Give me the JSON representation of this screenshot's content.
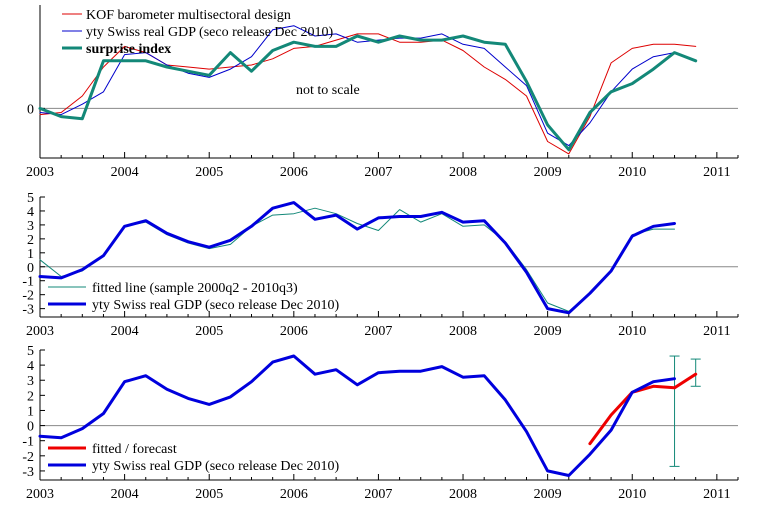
{
  "chart_data": [
    {
      "type": "line",
      "x_range": [
        2003.0,
        2011.25
      ],
      "x_ticks": [
        "2003",
        "2004",
        "2005",
        "2006",
        "2007",
        "2008",
        "2009",
        "2010",
        "2011"
      ],
      "y_ticks": [
        "0"
      ],
      "ylim": [
        -1.2,
        2.5
      ],
      "annotation": "not to scale",
      "legend_position": "top-left",
      "series": [
        {
          "name": "KOF barometer multisectoral design",
          "color": "#dd0000",
          "width": 1,
          "bold_label": false,
          "x": [
            2003.0,
            2003.25,
            2003.5,
            2003.75,
            2004.0,
            2004.25,
            2004.5,
            2004.75,
            2005.0,
            2005.25,
            2005.5,
            2005.75,
            2006.0,
            2006.25,
            2006.5,
            2006.75,
            2007.0,
            2007.25,
            2007.5,
            2007.75,
            2008.0,
            2008.25,
            2008.5,
            2008.75,
            2009.0,
            2009.25,
            2009.5,
            2009.75,
            2010.0,
            2010.25,
            2010.5,
            2010.75
          ],
          "values": [
            -0.15,
            -0.1,
            0.3,
            1.0,
            1.5,
            1.35,
            1.05,
            1.0,
            0.95,
            1.0,
            1.05,
            1.2,
            1.45,
            1.5,
            1.65,
            1.8,
            1.8,
            1.6,
            1.6,
            1.65,
            1.4,
            1.0,
            0.7,
            0.3,
            -0.8,
            -1.1,
            -0.2,
            1.1,
            1.45,
            1.55,
            1.55,
            1.5
          ]
        },
        {
          "name": "yty Swiss real GDP (seco release Dec 2010)",
          "color": "#0000cc",
          "width": 1,
          "bold_label": false,
          "x": [
            2003.0,
            2003.25,
            2003.5,
            2003.75,
            2004.0,
            2004.25,
            2004.5,
            2004.75,
            2005.0,
            2005.25,
            2005.5,
            2005.75,
            2006.0,
            2006.25,
            2006.5,
            2006.75,
            2007.0,
            2007.25,
            2007.5,
            2007.75,
            2008.0,
            2008.25,
            2008.5,
            2008.75,
            2009.0,
            2009.25,
            2009.5,
            2009.75,
            2010.0,
            2010.25,
            2010.5
          ],
          "values": [
            -0.1,
            -0.15,
            0.1,
            0.4,
            1.3,
            1.35,
            1.05,
            0.85,
            0.75,
            0.95,
            1.25,
            1.9,
            2.0,
            1.75,
            1.8,
            1.6,
            1.65,
            1.7,
            1.7,
            1.8,
            1.55,
            1.45,
            1.0,
            0.55,
            -0.6,
            -0.9,
            -0.35,
            0.4,
            0.95,
            1.25,
            1.35
          ]
        },
        {
          "name": "surprise index",
          "color": "#138878",
          "width": 3,
          "bold_label": true,
          "x": [
            2003.0,
            2003.25,
            2003.5,
            2003.75,
            2004.0,
            2004.25,
            2004.5,
            2004.75,
            2005.0,
            2005.25,
            2005.5,
            2005.75,
            2006.0,
            2006.25,
            2006.5,
            2006.75,
            2007.0,
            2007.25,
            2007.5,
            2007.75,
            2008.0,
            2008.25,
            2008.5,
            2008.75,
            2009.0,
            2009.25,
            2009.5,
            2009.75,
            2010.0,
            2010.25,
            2010.5,
            2010.75
          ],
          "values": [
            0.0,
            -0.2,
            -0.25,
            1.15,
            1.15,
            1.15,
            1.0,
            0.9,
            0.8,
            1.35,
            0.9,
            1.4,
            1.6,
            1.5,
            1.5,
            1.75,
            1.6,
            1.75,
            1.65,
            1.65,
            1.75,
            1.6,
            1.55,
            0.65,
            -0.4,
            -1.0,
            -0.1,
            0.4,
            0.6,
            0.95,
            1.35,
            1.15
          ]
        }
      ]
    },
    {
      "type": "line",
      "x_range": [
        2003.0,
        2011.25
      ],
      "x_ticks": [
        "2003",
        "2004",
        "2005",
        "2006",
        "2007",
        "2008",
        "2009",
        "2010",
        "2011"
      ],
      "y_ticks": [
        "5",
        "4",
        "3",
        "2",
        "1",
        "0",
        "-1",
        "-2",
        "-3"
      ],
      "ylim": [
        -3.6,
        5.0
      ],
      "legend_position": "bottom-left",
      "series": [
        {
          "name": "fitted line (sample 2000q2 - 2010q3)",
          "color": "#138878",
          "width": 1,
          "x": [
            2003.0,
            2003.25,
            2003.5,
            2003.75,
            2004.0,
            2004.25,
            2004.5,
            2004.75,
            2005.0,
            2005.25,
            2005.5,
            2005.75,
            2006.0,
            2006.25,
            2006.5,
            2006.75,
            2007.0,
            2007.25,
            2007.5,
            2007.75,
            2008.0,
            2008.25,
            2008.5,
            2008.75,
            2009.0,
            2009.25,
            2009.5,
            2009.75,
            2010.0,
            2010.25,
            2010.5
          ],
          "values": [
            0.5,
            -0.7,
            -0.3,
            0.8,
            2.9,
            3.2,
            2.3,
            1.7,
            1.3,
            1.6,
            2.9,
            3.7,
            3.8,
            4.2,
            3.8,
            3.1,
            2.6,
            4.1,
            3.2,
            3.8,
            2.9,
            3.0,
            1.8,
            -0.2,
            -2.6,
            -3.2,
            -1.9,
            -0.3,
            2.3,
            2.7,
            2.7
          ]
        },
        {
          "name": "yty Swiss real GDP (seco release Dec 2010)",
          "color": "#0000dd",
          "width": 3,
          "x": [
            2003.0,
            2003.25,
            2003.5,
            2003.75,
            2004.0,
            2004.25,
            2004.5,
            2004.75,
            2005.0,
            2005.25,
            2005.5,
            2005.75,
            2006.0,
            2006.25,
            2006.5,
            2006.75,
            2007.0,
            2007.25,
            2007.5,
            2007.75,
            2008.0,
            2008.25,
            2008.5,
            2008.75,
            2009.0,
            2009.25,
            2009.5,
            2009.75,
            2010.0,
            2010.25,
            2010.5
          ],
          "values": [
            -0.7,
            -0.8,
            -0.2,
            0.8,
            2.9,
            3.3,
            2.4,
            1.8,
            1.4,
            1.9,
            2.9,
            4.2,
            4.6,
            3.4,
            3.7,
            2.7,
            3.5,
            3.6,
            3.6,
            3.9,
            3.2,
            3.3,
            1.7,
            -0.4,
            -3.0,
            -3.3,
            -1.9,
            -0.3,
            2.2,
            2.9,
            3.1
          ]
        }
      ]
    },
    {
      "type": "line",
      "x_range": [
        2003.0,
        2011.25
      ],
      "x_ticks": [
        "2003",
        "2004",
        "2005",
        "2006",
        "2007",
        "2008",
        "2009",
        "2010",
        "2011"
      ],
      "y_ticks": [
        "5",
        "4",
        "3",
        "2",
        "1",
        "0",
        "-1",
        "-2",
        "-3"
      ],
      "ylim": [
        -3.6,
        5.0
      ],
      "legend_position": "bottom-left",
      "series": [
        {
          "name": "fitted / forecast",
          "color": "#ee0000",
          "width": 3,
          "x": [
            2009.5,
            2009.75,
            2010.0,
            2010.25,
            2010.5,
            2010.75
          ],
          "values": [
            -1.2,
            0.7,
            2.2,
            2.6,
            2.5,
            3.4
          ]
        },
        {
          "name": "yty Swiss real GDP (seco release Dec 2010)",
          "color": "#0000dd",
          "width": 3,
          "x": [
            2003.0,
            2003.25,
            2003.5,
            2003.75,
            2004.0,
            2004.25,
            2004.5,
            2004.75,
            2005.0,
            2005.25,
            2005.5,
            2005.75,
            2006.0,
            2006.25,
            2006.5,
            2006.75,
            2007.0,
            2007.25,
            2007.5,
            2007.75,
            2008.0,
            2008.25,
            2008.5,
            2008.75,
            2009.0,
            2009.25,
            2009.5,
            2009.75,
            2010.0,
            2010.25,
            2010.5
          ],
          "values": [
            -0.7,
            -0.8,
            -0.2,
            0.8,
            2.9,
            3.3,
            2.4,
            1.8,
            1.4,
            1.9,
            2.9,
            4.2,
            4.6,
            3.4,
            3.7,
            2.7,
            3.5,
            3.6,
            3.6,
            3.9,
            3.2,
            3.3,
            1.7,
            -0.4,
            -3.0,
            -3.3,
            -1.9,
            -0.3,
            2.2,
            2.9,
            3.1
          ]
        }
      ],
      "error_bars": [
        {
          "x": 2010.5,
          "low": -2.7,
          "high": 4.6,
          "color": "#138878"
        },
        {
          "x": 2010.75,
          "low": 2.6,
          "high": 4.4,
          "color": "#138878"
        }
      ]
    }
  ]
}
